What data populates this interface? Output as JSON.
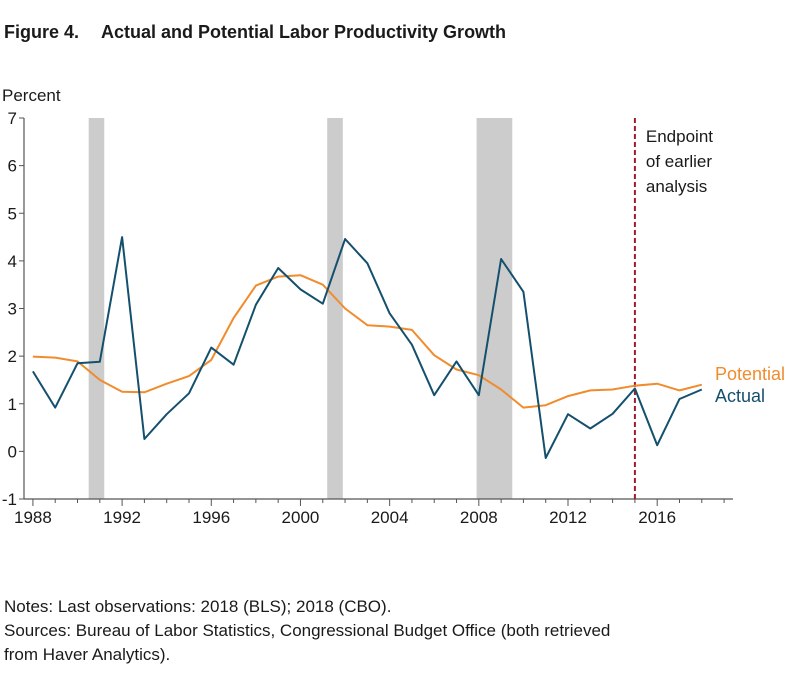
{
  "figure": {
    "number": "Figure 4.",
    "title": "Actual and Potential Labor Productivity Growth"
  },
  "notes": {
    "line1": "Notes: Last observations: 2018 (BLS); 2018 (CBO).",
    "line2": "Sources: Bureau of Labor Statistics, Congressional Budget Office (both retrieved",
    "line3": "from Haver Analytics)."
  },
  "chart_data": {
    "type": "line",
    "ylabel": "Percent",
    "xlabel": "",
    "xlim": [
      1988,
      2018.5
    ],
    "ylim": [
      -1,
      7
    ],
    "yticks": [
      -1,
      0,
      1,
      2,
      3,
      4,
      5,
      6,
      7
    ],
    "xticks": [
      1988,
      1992,
      1996,
      2000,
      2004,
      2008,
      2012,
      2016
    ],
    "grid": false,
    "x": [
      1988,
      1989,
      1990,
      1991,
      1992,
      1993,
      1994,
      1995,
      1996,
      1997,
      1998,
      1999,
      2000,
      2001,
      2002,
      2003,
      2004,
      2005,
      2006,
      2007,
      2008,
      2009,
      2010,
      2011,
      2012,
      2013,
      2014,
      2015,
      2016,
      2017,
      2018
    ],
    "series": [
      {
        "name": "Actual",
        "color": "#14506e",
        "values": [
          1.68,
          0.92,
          1.85,
          1.88,
          4.5,
          0.26,
          0.78,
          1.22,
          2.18,
          1.82,
          3.08,
          3.85,
          3.4,
          3.1,
          4.46,
          3.95,
          2.9,
          2.24,
          1.18,
          1.89,
          1.18,
          4.04,
          3.35,
          -0.14,
          0.78,
          0.48,
          0.79,
          1.32,
          0.13,
          1.1,
          1.3
        ]
      },
      {
        "name": "Potential",
        "color": "#f08c2d",
        "values": [
          1.99,
          1.97,
          1.89,
          1.5,
          1.25,
          1.24,
          1.42,
          1.58,
          1.92,
          2.8,
          3.48,
          3.67,
          3.7,
          3.5,
          3.0,
          2.65,
          2.62,
          2.55,
          2.02,
          1.72,
          1.6,
          1.3,
          0.92,
          0.97,
          1.16,
          1.28,
          1.3,
          1.38,
          1.42,
          1.28,
          1.4
        ]
      }
    ],
    "recessions": [
      [
        1990.5,
        1991.2
      ],
      [
        2001.2,
        2001.9
      ],
      [
        2007.9,
        2009.5
      ]
    ],
    "reference_line": {
      "x": 2015,
      "color": "#9e1b2a",
      "label": [
        "Endpoint",
        "of earlier",
        "analysis"
      ]
    },
    "legend_placement": "right"
  }
}
